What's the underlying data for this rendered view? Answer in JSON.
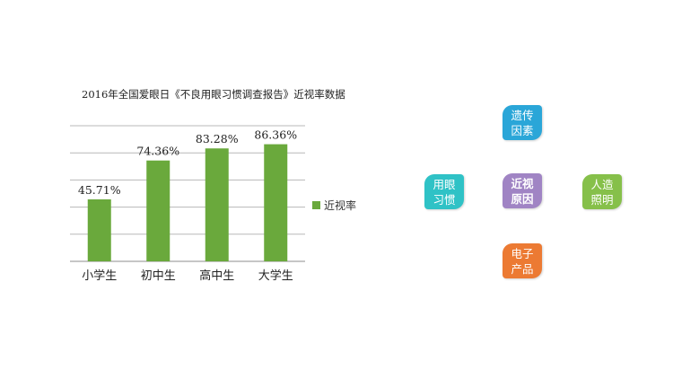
{
  "chart_data": {
    "type": "bar",
    "title": "2016年全国爱眼日《不良用眼习惯调查报告》近视率数据",
    "categories": [
      "小学生",
      "初中生",
      "高中生",
      "大学生"
    ],
    "series": [
      {
        "name": "近视率",
        "values": [
          45.71,
          74.36,
          83.28,
          86.36
        ],
        "labels": [
          "45.71%",
          "74.36%",
          "83.28%",
          "86.36%"
        ]
      }
    ],
    "ylim": [
      0,
      100
    ],
    "grid": true,
    "legend_position": "right",
    "bar_color": "#6aa93c"
  },
  "diagram": {
    "center": {
      "text": "近视原因",
      "color": "#a084c4"
    },
    "top": {
      "text": "遗传因素",
      "color": "#2aa6d8"
    },
    "left": {
      "text": "用眼习惯",
      "color": "#2fc2c6"
    },
    "right": {
      "text": "人造照明",
      "color": "#86c04a"
    },
    "bottom": {
      "text": "电子产品",
      "color": "#ec7a33"
    }
  }
}
